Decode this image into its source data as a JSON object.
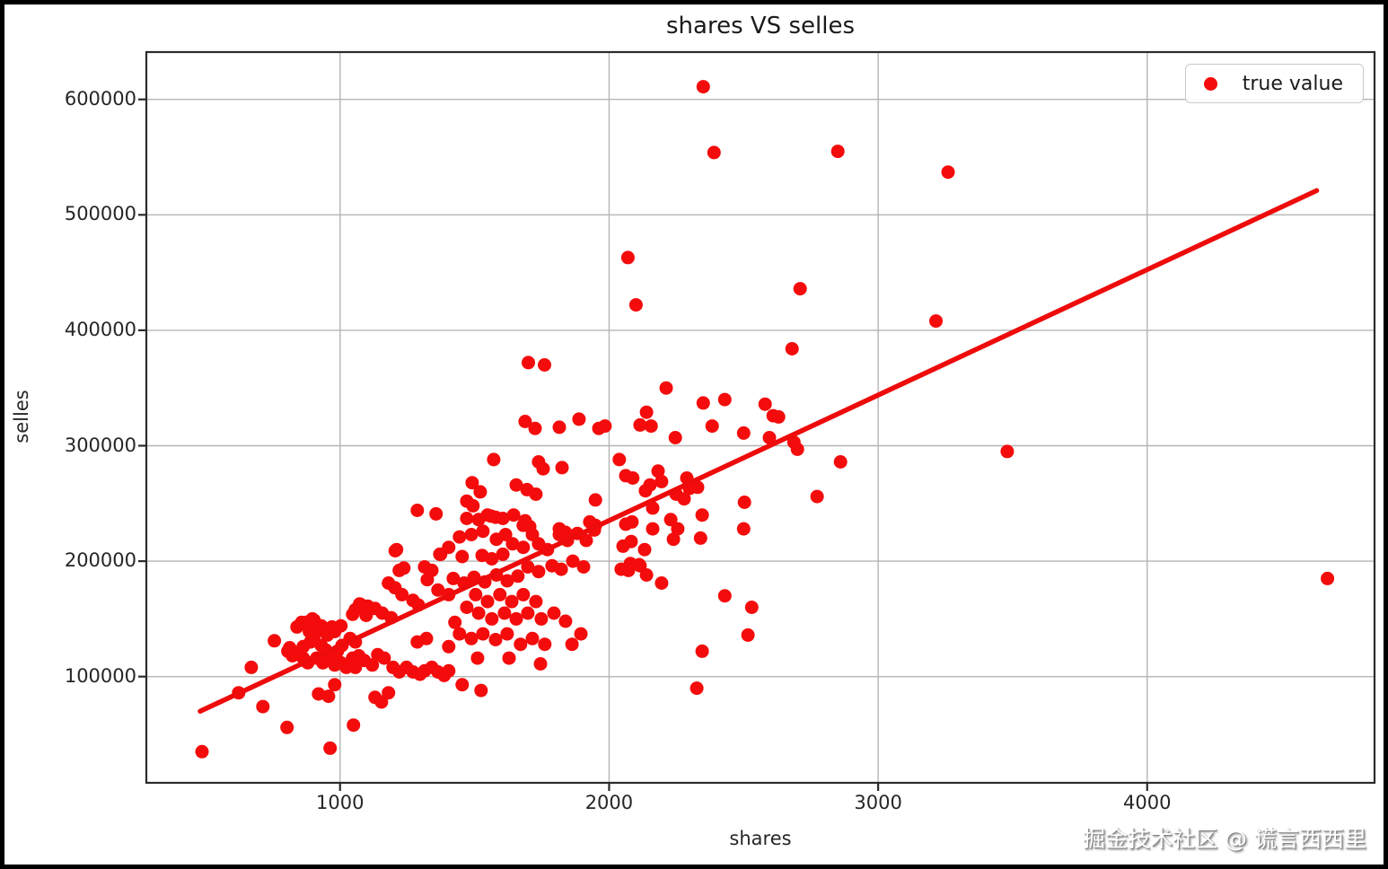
{
  "figure": {
    "title": "shares VS selles",
    "xlabel": "shares",
    "ylabel": "selles",
    "legend_label": "true value",
    "watermark": "掘金技术社区 @ 谎言西西里"
  },
  "colors": {
    "point": "#f40b0b",
    "line": "#ee0b0b",
    "grid": "#b5b5b5",
    "spine": "#2b2b2b",
    "background": "#ffffff",
    "frame": "#000000",
    "text": "#262626"
  },
  "chart_data": {
    "type": "scatter",
    "title": "shares VS selles",
    "xlabel": "shares",
    "ylabel": "selles",
    "legend": [
      "true value"
    ],
    "legend_position": "upper right",
    "grid": true,
    "x_ticks": [
      1000,
      2000,
      3000,
      4000
    ],
    "y_ticks": [
      100000,
      200000,
      300000,
      400000,
      500000,
      600000
    ],
    "x_range": [
      280,
      4845
    ],
    "y_range": [
      8000,
      641000
    ],
    "marker_radius": 7.5,
    "trend_line": {
      "x": [
        480,
        4630
      ],
      "y": [
        70000,
        521000
      ]
    },
    "points": [
      [
        2350,
        611000
      ],
      [
        2390,
        554000
      ],
      [
        2850,
        555000
      ],
      [
        3260,
        537000
      ],
      [
        2070,
        463000
      ],
      [
        2100,
        422000
      ],
      [
        2710,
        436000
      ],
      [
        3215,
        408000
      ],
      [
        2680,
        384000
      ],
      [
        1700,
        372000
      ],
      [
        1760,
        370000
      ],
      [
        2212,
        350000
      ],
      [
        2350,
        337000
      ],
      [
        2430,
        340000
      ],
      [
        2580,
        336000
      ],
      [
        2610,
        326000
      ],
      [
        2630,
        325000
      ],
      [
        2383,
        317000
      ],
      [
        2139,
        329000
      ],
      [
        2156,
        317000
      ],
      [
        2115,
        318000
      ],
      [
        1688,
        321000
      ],
      [
        1725,
        315000
      ],
      [
        1815,
        316000
      ],
      [
        1888,
        323000
      ],
      [
        1962,
        315000
      ],
      [
        1985,
        317000
      ],
      [
        2246,
        307000
      ],
      [
        2500,
        311000
      ],
      [
        2596,
        307000
      ],
      [
        2687,
        303000
      ],
      [
        2700,
        297000
      ],
      [
        2860,
        286000
      ],
      [
        3480,
        295000
      ],
      [
        1571,
        288000
      ],
      [
        1738,
        286000
      ],
      [
        1755,
        280000
      ],
      [
        1825,
        281000
      ],
      [
        2038,
        288000
      ],
      [
        2062,
        274000
      ],
      [
        2088,
        272000
      ],
      [
        2182,
        278000
      ],
      [
        2195,
        269000
      ],
      [
        2289,
        272000
      ],
      [
        2299,
        263000
      ],
      [
        2329,
        264000
      ],
      [
        2152,
        266000
      ],
      [
        2135,
        261000
      ],
      [
        2249,
        258000
      ],
      [
        2279,
        254000
      ],
      [
        2503,
        251000
      ],
      [
        2773,
        256000
      ],
      [
        1655,
        266000
      ],
      [
        1695,
        262000
      ],
      [
        1728,
        258000
      ],
      [
        1491,
        268000
      ],
      [
        1521,
        260000
      ],
      [
        1471,
        252000
      ],
      [
        1949,
        253000
      ],
      [
        2162,
        246000
      ],
      [
        2346,
        240000
      ],
      [
        1928,
        234000
      ],
      [
        1949,
        231000
      ],
      [
        2062,
        232000
      ],
      [
        2085,
        234000
      ],
      [
        2229,
        236000
      ],
      [
        1548,
        240000
      ],
      [
        1578,
        238000
      ],
      [
        1605,
        237000
      ],
      [
        1515,
        236000
      ],
      [
        1471,
        237000
      ],
      [
        1645,
        240000
      ],
      [
        1815,
        228000
      ],
      [
        1838,
        225000
      ],
      [
        1681,
        231000
      ],
      [
        1705,
        230000
      ],
      [
        1287,
        244000
      ],
      [
        1357,
        241000
      ],
      [
        1494,
        248000
      ],
      [
        1210,
        210000
      ],
      [
        1371,
        206000
      ],
      [
        2052,
        213000
      ],
      [
        2082,
        217000
      ],
      [
        2132,
        210000
      ],
      [
        2115,
        196000
      ],
      [
        2162,
        228000
      ],
      [
        2239,
        219000
      ],
      [
        2255,
        228000
      ],
      [
        2340,
        220000
      ],
      [
        2500,
        228000
      ],
      [
        2045,
        193000
      ],
      [
        2072,
        192000
      ],
      [
        2112,
        197000
      ],
      [
        2139,
        188000
      ],
      [
        2079,
        198000
      ],
      [
        2195,
        181000
      ],
      [
        2430,
        170000
      ],
      [
        2530,
        160000
      ],
      [
        2516,
        136000
      ],
      [
        2346,
        122000
      ],
      [
        2326,
        90000
      ],
      [
        4670,
        185000
      ],
      [
        1205,
        209000
      ],
      [
        1220,
        192000
      ],
      [
        1237,
        194000
      ],
      [
        1314,
        195000
      ],
      [
        1341,
        192000
      ],
      [
        1374,
        206000
      ],
      [
        1324,
        184000
      ],
      [
        1364,
        175000
      ],
      [
        1180,
        181000
      ],
      [
        1204,
        177000
      ],
      [
        1230,
        171000
      ],
      [
        1073,
        163000
      ],
      [
        1103,
        161000
      ],
      [
        1130,
        159000
      ],
      [
        1157,
        155000
      ],
      [
        1190,
        151000
      ],
      [
        1271,
        166000
      ],
      [
        1291,
        162000
      ],
      [
        1321,
        133000
      ],
      [
        1287,
        130000
      ],
      [
        1404,
        171000
      ],
      [
        873,
        147000
      ],
      [
        903,
        149000
      ],
      [
        930,
        144000
      ],
      [
        953,
        141000
      ],
      [
        980,
        139000
      ],
      [
        1003,
        144000
      ],
      [
        1037,
        133000
      ],
      [
        1057,
        130000
      ],
      [
        1007,
        127000
      ],
      [
        990,
        122000
      ],
      [
        930,
        127000
      ],
      [
        947,
        123000
      ],
      [
        890,
        130000
      ],
      [
        863,
        126000
      ],
      [
        756,
        131000
      ],
      [
        806,
        122000
      ],
      [
        823,
        118000
      ],
      [
        863,
        116000
      ],
      [
        880,
        112000
      ],
      [
        913,
        116000
      ],
      [
        936,
        112000
      ],
      [
        963,
        116000
      ],
      [
        980,
        110000
      ],
      [
        1003,
        112000
      ],
      [
        1023,
        108000
      ],
      [
        1047,
        116000
      ],
      [
        1070,
        118000
      ],
      [
        1090,
        114000
      ],
      [
        1120,
        110000
      ],
      [
        1140,
        119000
      ],
      [
        1164,
        116000
      ],
      [
        1197,
        108000
      ],
      [
        1220,
        104000
      ],
      [
        1247,
        108000
      ],
      [
        1271,
        104000
      ],
      [
        1297,
        102000
      ],
      [
        1314,
        105000
      ],
      [
        1341,
        108000
      ],
      [
        1364,
        104000
      ],
      [
        1387,
        101000
      ],
      [
        1404,
        105000
      ],
      [
        670,
        108000
      ],
      [
        623,
        86000
      ],
      [
        713,
        74000
      ],
      [
        803,
        56000
      ],
      [
        1050,
        58000
      ],
      [
        487,
        35000
      ],
      [
        963,
        38000
      ],
      [
        1454,
        93000
      ],
      [
        1524,
        88000
      ],
      [
        920,
        85000
      ],
      [
        957,
        83000
      ],
      [
        980,
        93000
      ],
      [
        1037,
        112000
      ],
      [
        1057,
        108000
      ],
      [
        1180,
        86000
      ],
      [
        1130,
        82000
      ],
      [
        1154,
        78000
      ],
      [
        840,
        143000
      ],
      [
        857,
        147000
      ],
      [
        897,
        150000
      ],
      [
        913,
        145000
      ],
      [
        886,
        139000
      ],
      [
        903,
        135000
      ],
      [
        813,
        125000
      ],
      [
        830,
        121000
      ],
      [
        936,
        140000
      ],
      [
        953,
        136000
      ],
      [
        970,
        143000
      ],
      [
        1047,
        154000
      ],
      [
        1057,
        158000
      ],
      [
        1080,
        162000
      ],
      [
        1097,
        153000
      ],
      [
        1561,
        239000
      ],
      [
        1488,
        223000
      ],
      [
        1531,
        226000
      ],
      [
        1581,
        219000
      ],
      [
        1615,
        223000
      ],
      [
        1688,
        235000
      ],
      [
        1641,
        215000
      ],
      [
        1681,
        212000
      ],
      [
        1605,
        206000
      ],
      [
        1564,
        202000
      ],
      [
        1528,
        205000
      ],
      [
        1454,
        204000
      ],
      [
        1404,
        212000
      ],
      [
        1444,
        221000
      ],
      [
        1715,
        223000
      ],
      [
        1738,
        215000
      ],
      [
        1771,
        210000
      ],
      [
        1815,
        223000
      ],
      [
        1845,
        218000
      ],
      [
        1882,
        224000
      ],
      [
        1915,
        218000
      ],
      [
        1945,
        227000
      ],
      [
        1788,
        196000
      ],
      [
        1822,
        193000
      ],
      [
        1865,
        200000
      ],
      [
        1905,
        195000
      ],
      [
        1738,
        191000
      ],
      [
        1698,
        195000
      ],
      [
        1661,
        187000
      ],
      [
        1621,
        183000
      ],
      [
        1581,
        188000
      ],
      [
        1538,
        182000
      ],
      [
        1498,
        186000
      ],
      [
        1461,
        181000
      ],
      [
        1421,
        185000
      ],
      [
        1504,
        171000
      ],
      [
        1548,
        165000
      ],
      [
        1594,
        171000
      ],
      [
        1638,
        165000
      ],
      [
        1681,
        171000
      ],
      [
        1728,
        165000
      ],
      [
        1471,
        160000
      ],
      [
        1515,
        155000
      ],
      [
        1564,
        150000
      ],
      [
        1611,
        155000
      ],
      [
        1655,
        150000
      ],
      [
        1698,
        155000
      ],
      [
        1427,
        147000
      ],
      [
        1748,
        150000
      ],
      [
        1795,
        155000
      ],
      [
        1838,
        148000
      ],
      [
        1444,
        137000
      ],
      [
        1488,
        133000
      ],
      [
        1531,
        137000
      ],
      [
        1578,
        132000
      ],
      [
        1621,
        137000
      ],
      [
        1671,
        128000
      ],
      [
        1715,
        133000
      ],
      [
        1761,
        128000
      ],
      [
        1404,
        126000
      ],
      [
        1511,
        116000
      ],
      [
        1628,
        116000
      ],
      [
        1745,
        111000
      ],
      [
        1862,
        128000
      ],
      [
        1895,
        137000
      ]
    ]
  }
}
